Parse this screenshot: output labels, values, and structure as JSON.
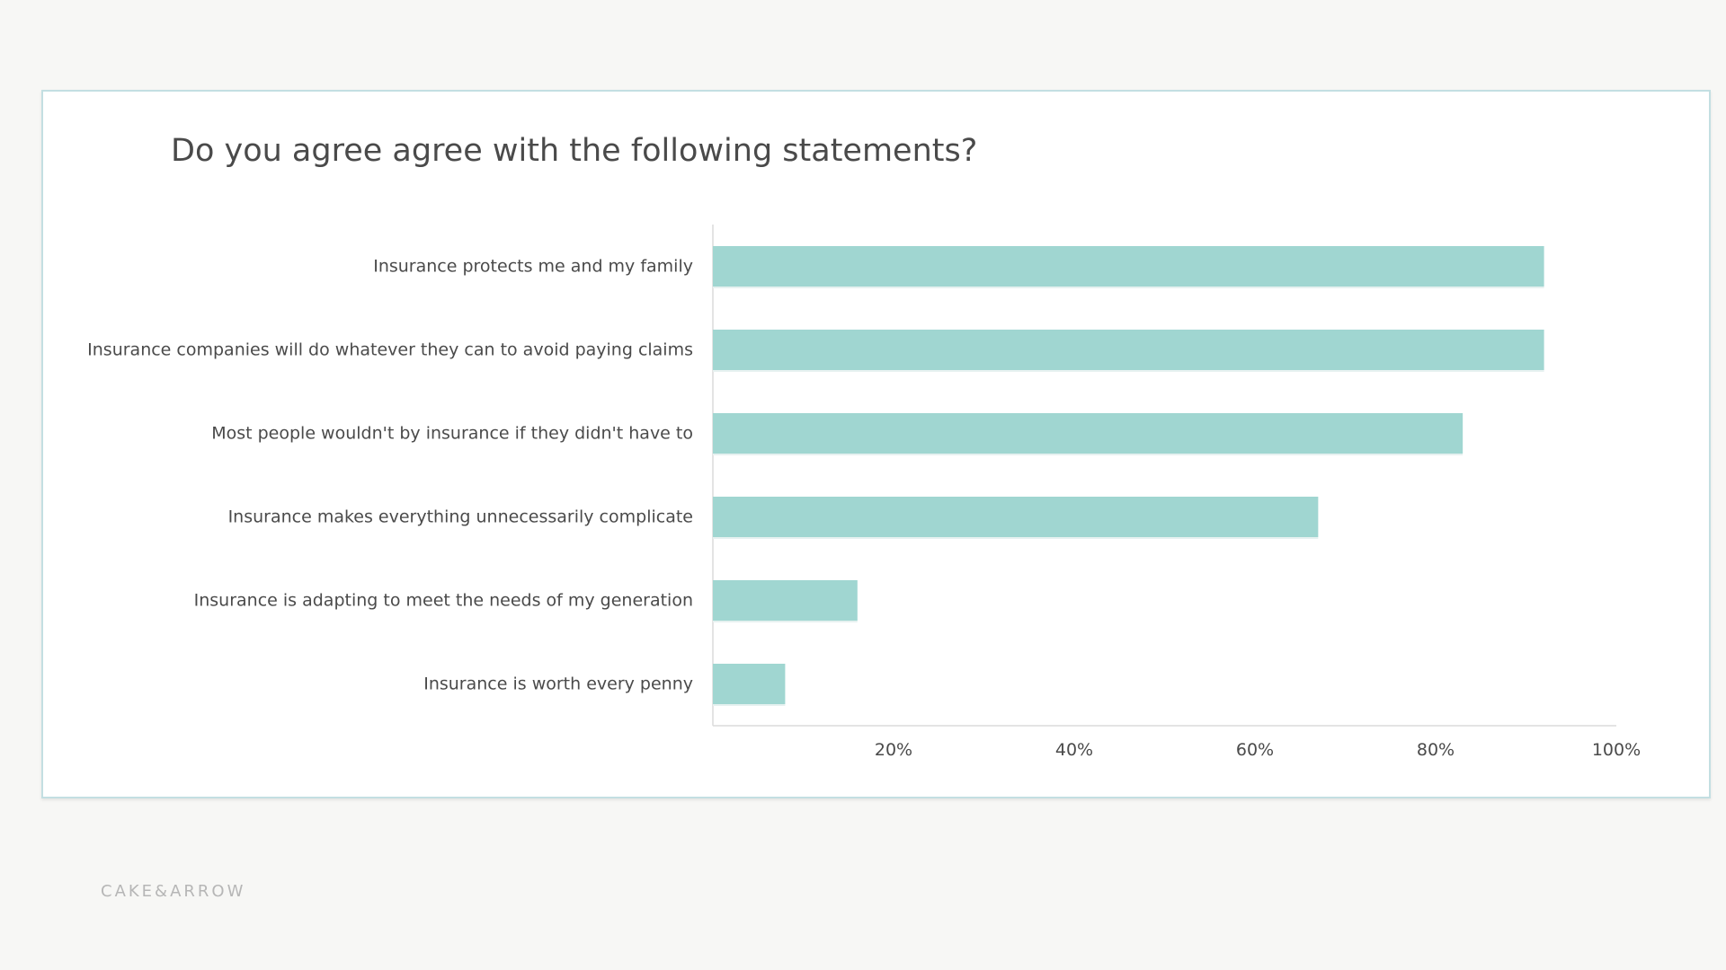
{
  "logo": "CAKE&ARROW",
  "chart_data": {
    "type": "bar",
    "orientation": "horizontal",
    "title": "Do you agree agree with the following statements?",
    "categories": [
      "Insurance protects me and my family",
      "Insurance companies will do whatever they can to avoid paying claims",
      "Most people wouldn't by insurance if they didn't have to",
      "Insurance makes everything unnecessarily complicate",
      "Insurance is adapting to meet the needs of my generation",
      "Insurance is worth every penny"
    ],
    "values": [
      92,
      92,
      83,
      67,
      16,
      8
    ],
    "xlim": [
      0,
      100
    ],
    "xticks": [
      20,
      40,
      60,
      80,
      100
    ],
    "xtick_labels": [
      "20%",
      "40%",
      "60%",
      "80%",
      "100%"
    ],
    "xlabel": "",
    "ylabel": "",
    "grid": false,
    "bar_color": "#a0d6d1"
  }
}
